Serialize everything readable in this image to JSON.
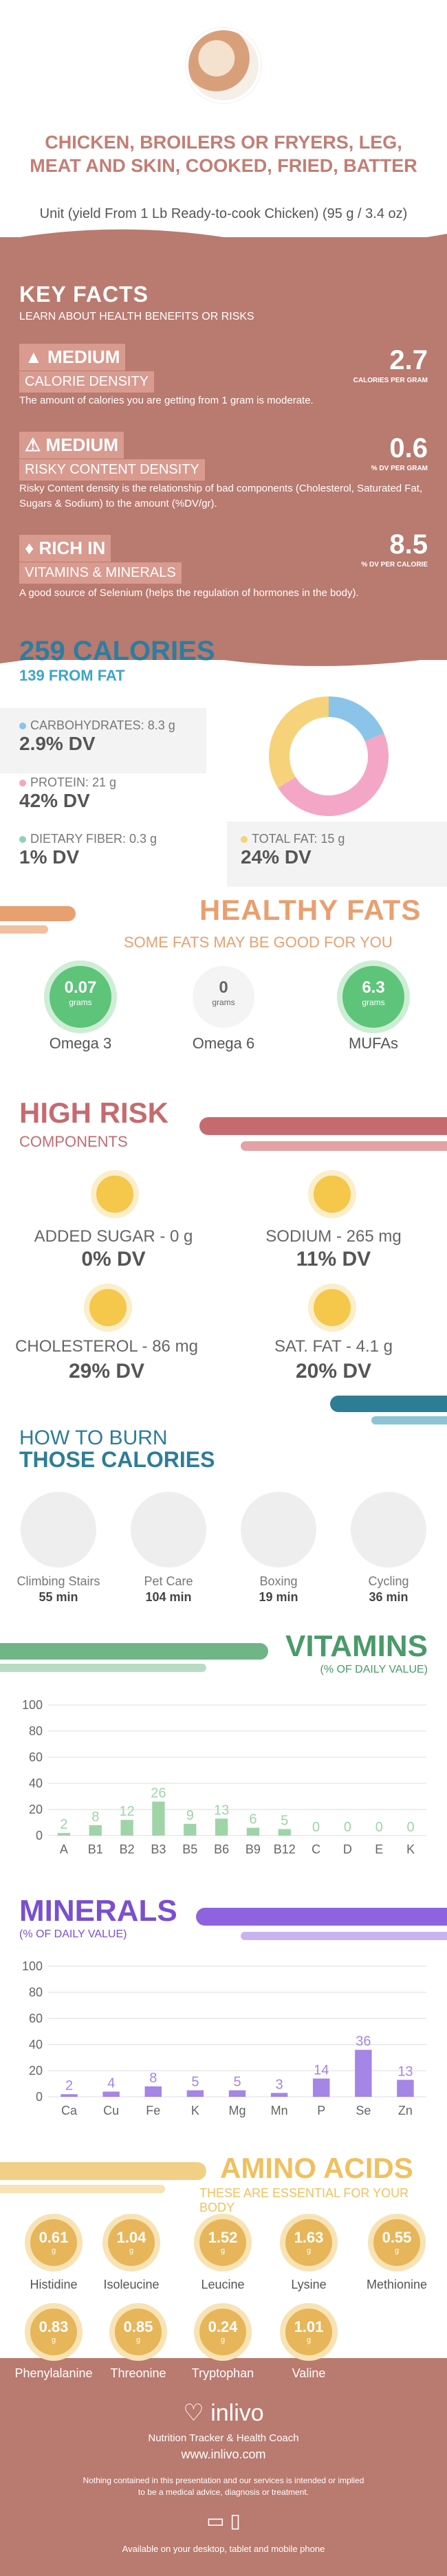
{
  "header": {
    "title": "CHICKEN, BROILERS OR FRYERS, LEG, MEAT AND SKIN, COOKED, FRIED, BATTER",
    "unit": "Unit (yield From 1 Lb Ready-to-cook Chicken) (95 g / 3.4 oz)"
  },
  "key_facts": {
    "title": "KEY FACTS",
    "subtitle": "LEARN ABOUT HEALTH BENEFITS OR RISKS",
    "items": [
      {
        "level": "MEDIUM",
        "name": "CALORIE DENSITY",
        "value": "2.7",
        "unit": "CALORIES PER GRAM",
        "desc": "The amount of calories you are getting from 1 gram is moderate."
      },
      {
        "level": "MEDIUM",
        "name": "RISKY CONTENT DENSITY",
        "value": "0.6",
        "unit": "% DV PER GRAM",
        "desc": "Risky Content density is the relationship of bad components (Cholesterol, Saturated Fat, Sugars & Sodium) to the amount (%DV/gr)."
      },
      {
        "level": "RICH  IN",
        "name": "VITAMINS & MINERALS",
        "value": "8.5",
        "unit": "% DV PER CALORIE",
        "desc": "A good source of Selenium (helps the regulation of hormones in the body)."
      }
    ]
  },
  "calories": {
    "title": "259 CALORIES",
    "from_fat": "139 FROM FAT",
    "carbs_label": "CARBOHYDRATES: 8.3 g",
    "carbs_dv": "2.9% DV",
    "protein_label": "PROTEIN: 21 g",
    "protein_dv": "42% DV",
    "fiber_label": "DIETARY FIBER: 0.3 g",
    "fiber_dv": "1% DV",
    "fat_label": "TOTAL FAT: 15 g",
    "fat_dv": "24% DV",
    "colors": {
      "carbs": "#8ac4e8",
      "protein": "#f4a6c6",
      "fiber": "#8fd3b6",
      "fat": "#f6d27a"
    },
    "donut": [
      {
        "name": "carbs",
        "value": 8.3
      },
      {
        "name": "protein",
        "value": 21
      },
      {
        "name": "fat",
        "value": 15
      }
    ]
  },
  "healthy_fats": {
    "title": "HEALTHY FATS",
    "subtitle": "SOME FATS MAY BE GOOD FOR YOU",
    "items": [
      {
        "value": "0.07",
        "unit": "grams",
        "name": "Omega 3"
      },
      {
        "value": "0",
        "unit": "grams",
        "name": "Omega 6"
      },
      {
        "value": "6.3",
        "unit": "grams",
        "name": "MUFAs"
      }
    ]
  },
  "high_risk": {
    "title": "HIGH RISK",
    "subtitle": "COMPONENTS",
    "items": [
      {
        "label": "ADDED SUGAR - 0 g",
        "dv": "0% DV"
      },
      {
        "label": "SODIUM - 265 mg",
        "dv": "11% DV"
      },
      {
        "label": "CHOLESTEROL - 86 mg",
        "dv": "29% DV"
      },
      {
        "label": "SAT. FAT - 4.1 g",
        "dv": "20% DV"
      }
    ]
  },
  "burn": {
    "title1": "HOW TO BURN",
    "title2": "THOSE CALORIES",
    "items": [
      {
        "name": "Climbing Stairs",
        "min": "55 min"
      },
      {
        "name": "Pet Care",
        "min": "104 min"
      },
      {
        "name": "Boxing",
        "min": "19 min"
      },
      {
        "name": "Cycling",
        "min": "36 min"
      }
    ]
  },
  "vitamins": {
    "title": "VITAMINS",
    "subtitle": "(% OF DAILY VALUE)"
  },
  "minerals": {
    "title": "MINERALS",
    "subtitle": "(% OF DAILY VALUE)"
  },
  "chart_data": [
    {
      "type": "bar",
      "categories": [
        "A",
        "B1",
        "B2",
        "B3",
        "B5",
        "B6",
        "B9",
        "B12",
        "C",
        "D",
        "E",
        "K"
      ],
      "values": [
        2,
        8,
        12,
        26,
        9,
        13,
        6,
        5,
        0,
        0,
        0,
        0
      ],
      "labels": [
        "2",
        "8",
        "12",
        "26",
        "9",
        "13",
        "6",
        "5",
        "0",
        "0",
        "0",
        "0"
      ],
      "yticks": [
        "0",
        "20",
        "40",
        "60",
        "80",
        "100"
      ],
      "ylim": [
        0,
        100
      ],
      "grid": true,
      "color": "#9fd4a8"
    },
    {
      "type": "bar",
      "categories": [
        "Ca",
        "Cu",
        "Fe",
        "K",
        "Mg",
        "Mn",
        "P",
        "Se",
        "Zn"
      ],
      "values": [
        2,
        4,
        8,
        5,
        5,
        3,
        14,
        36,
        13
      ],
      "labels": [
        "2",
        "4",
        "8",
        "5",
        "5",
        "3",
        "14",
        "36",
        "13"
      ],
      "yticks": [
        "0",
        "20",
        "40",
        "60",
        "80",
        "100"
      ],
      "ylim": [
        0,
        100
      ],
      "grid": true,
      "color": "#a585e6"
    }
  ],
  "amino": {
    "title": "AMINO ACIDS",
    "subtitle": "THESE ARE ESSENTIAL FOR YOUR BODY",
    "unit": "g",
    "items": [
      {
        "value": "0.61",
        "name": "Histidine"
      },
      {
        "value": "1.04",
        "name": "Isoleucine"
      },
      {
        "value": "1.52",
        "name": "Leucine"
      },
      {
        "value": "1.63",
        "name": "Lysine"
      },
      {
        "value": "0.55",
        "name": "Methionine"
      },
      {
        "value": "0.83",
        "name": "Phenylalanine"
      },
      {
        "value": "0.85",
        "name": "Threonine"
      },
      {
        "value": "0.24",
        "name": "Tryptophan"
      },
      {
        "value": "1.01",
        "name": "Valine"
      }
    ]
  },
  "footer": {
    "brand": "inlivo",
    "tagline": "Nutrition Tracker & Health Coach",
    "url": "www.inlivo.com",
    "disclaimer": "Nothing contained in this presentation and our services is intended or implied to be a medical advice, diagnosis or treatment.",
    "available": "Available on your desktop, tablet and mobile phone"
  }
}
